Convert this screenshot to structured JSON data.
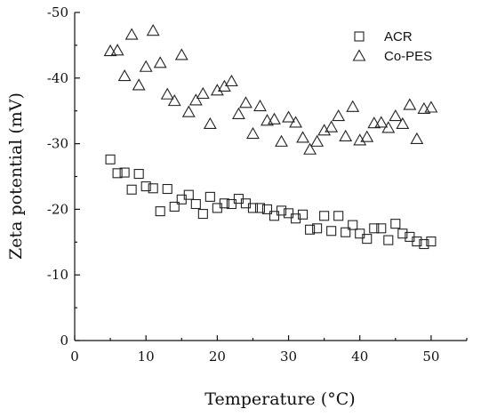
{
  "chart_data": {
    "type": "scatter",
    "title": "",
    "xlabel": "Temperature (°C)",
    "ylabel": "Zeta potential (mV)",
    "xlim": [
      0,
      55
    ],
    "ylim": [
      0,
      -50
    ],
    "x_ticks": [
      0,
      10,
      20,
      30,
      40,
      50
    ],
    "y_ticks": [
      0,
      -10,
      -20,
      -30,
      -40,
      -50
    ],
    "x_tick_labels": [
      "0",
      "10",
      "20",
      "30",
      "40",
      "50"
    ],
    "y_tick_labels": [
      "0",
      "-10",
      "-20",
      "-30",
      "-40",
      "-50"
    ],
    "grid": false,
    "legend_position": "top-right",
    "series": [
      {
        "name": "ACR",
        "marker": "square",
        "points": [
          [
            5,
            -27.6
          ],
          [
            6,
            -25.5
          ],
          [
            7,
            -25.6
          ],
          [
            8,
            -23.0
          ],
          [
            9,
            -25.4
          ],
          [
            10,
            -23.5
          ],
          [
            11,
            -23.2
          ],
          [
            12,
            -19.7
          ],
          [
            13,
            -23.1
          ],
          [
            14,
            -20.4
          ],
          [
            15,
            -21.5
          ],
          [
            16,
            -22.2
          ],
          [
            17,
            -20.8
          ],
          [
            18,
            -19.3
          ],
          [
            19,
            -21.9
          ],
          [
            20,
            -20.2
          ],
          [
            21,
            -20.9
          ],
          [
            22,
            -20.8
          ],
          [
            23,
            -21.6
          ],
          [
            24,
            -20.9
          ],
          [
            25,
            -20.2
          ],
          [
            26,
            -20.2
          ],
          [
            27,
            -20.0
          ],
          [
            28,
            -19.0
          ],
          [
            29,
            -19.8
          ],
          [
            30,
            -19.4
          ],
          [
            31,
            -18.6
          ],
          [
            32,
            -19.2
          ],
          [
            33,
            -16.9
          ],
          [
            34,
            -17.1
          ],
          [
            35,
            -19.0
          ],
          [
            36,
            -16.7
          ],
          [
            37,
            -19.0
          ],
          [
            38,
            -16.5
          ],
          [
            39,
            -17.6
          ],
          [
            40,
            -16.3
          ],
          [
            41,
            -15.5
          ],
          [
            42,
            -17.1
          ],
          [
            43,
            -17.1
          ],
          [
            44,
            -15.3
          ],
          [
            45,
            -17.8
          ],
          [
            46,
            -16.3
          ],
          [
            47,
            -15.8
          ],
          [
            48,
            -15.1
          ],
          [
            49,
            -14.7
          ],
          [
            50,
            -15.1
          ]
        ]
      },
      {
        "name": "Co-PES",
        "marker": "triangle",
        "points": [
          [
            5,
            -44.1
          ],
          [
            6,
            -44.2
          ],
          [
            7,
            -40.3
          ],
          [
            8,
            -46.6
          ],
          [
            9,
            -38.9
          ],
          [
            10,
            -41.7
          ],
          [
            11,
            -47.2
          ],
          [
            12,
            -42.3
          ],
          [
            13,
            -37.5
          ],
          [
            14,
            -36.5
          ],
          [
            15,
            -43.5
          ],
          [
            16,
            -34.8
          ],
          [
            17,
            -36.6
          ],
          [
            18,
            -37.6
          ],
          [
            19,
            -33.0
          ],
          [
            20,
            -38.1
          ],
          [
            21,
            -38.7
          ],
          [
            22,
            -39.5
          ],
          [
            23,
            -34.5
          ],
          [
            24,
            -36.2
          ],
          [
            25,
            -31.5
          ],
          [
            26,
            -35.7
          ],
          [
            27,
            -33.5
          ],
          [
            28,
            -33.7
          ],
          [
            29,
            -30.3
          ],
          [
            30,
            -34.0
          ],
          [
            31,
            -33.2
          ],
          [
            32,
            -30.9
          ],
          [
            33,
            -29.1
          ],
          [
            34,
            -30.3
          ],
          [
            35,
            -32.0
          ],
          [
            36,
            -32.5
          ],
          [
            37,
            -34.2
          ],
          [
            38,
            -31.1
          ],
          [
            39,
            -35.6
          ],
          [
            40,
            -30.5
          ],
          [
            41,
            -31.0
          ],
          [
            42,
            -33.1
          ],
          [
            43,
            -33.2
          ],
          [
            44,
            -32.4
          ],
          [
            45,
            -34.2
          ],
          [
            46,
            -33.0
          ],
          [
            47,
            -35.9
          ],
          [
            48,
            -30.7
          ],
          [
            49,
            -35.3
          ],
          [
            50,
            -35.5
          ]
        ]
      }
    ]
  }
}
